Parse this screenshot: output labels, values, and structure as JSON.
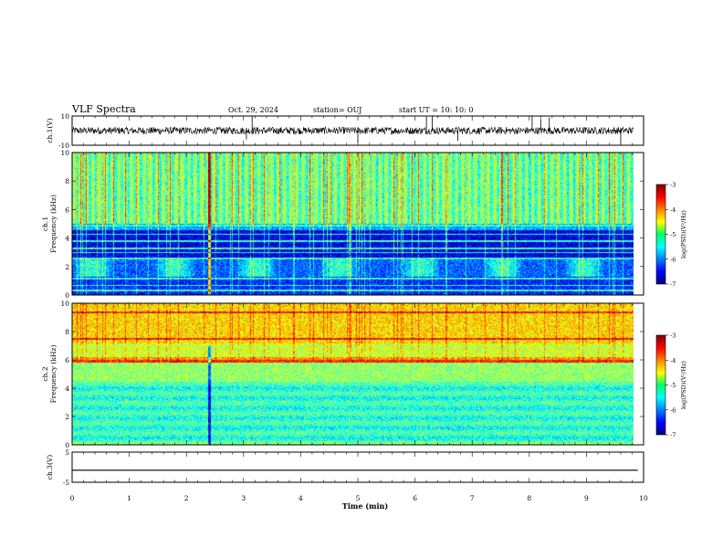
{
  "header": {
    "title": "VLF Spectra",
    "date": "Oct. 29, 2024",
    "station": "station= OUJ",
    "start": "start  UT =   10: 10: 0"
  },
  "chart_data": [
    {
      "name": "ch1-waveform",
      "type": "line",
      "ylabel": "ch.1(V)",
      "ylim": [
        -10,
        10
      ],
      "yticks": [
        "10",
        "-10"
      ],
      "xlim": [
        0,
        10
      ],
      "baseline": 0,
      "trace_color": "#000000"
    },
    {
      "name": "ch1-spectrogram",
      "type": "heatmap",
      "ylabel": "ch.1\nFrequency (kHz)",
      "ylim": [
        0,
        10
      ],
      "yticks": [
        "0",
        "2",
        "4",
        "6",
        "8",
        "10"
      ],
      "xlim": [
        0,
        10
      ],
      "data_end_min": 9.83,
      "colorbar": {
        "label": "log(PSD)(V²/Hz)",
        "range": [
          -7,
          -3
        ],
        "ticks": [
          "-3",
          "-4",
          "-5",
          "-6",
          "-7"
        ]
      }
    },
    {
      "name": "ch2-spectrogram",
      "type": "heatmap",
      "ylabel": "ch.2\nFrequency (kHz)",
      "ylim": [
        0,
        10
      ],
      "yticks": [
        "0",
        "2",
        "4",
        "6",
        "8",
        "10"
      ],
      "xlim": [
        0,
        10
      ],
      "data_end_min": 9.83,
      "colorbar": {
        "label": "log(PSD)(V²/Hz)",
        "range": [
          -7,
          -3
        ],
        "ticks": [
          "-3",
          "-4",
          "-5",
          "-6",
          "-7"
        ]
      }
    },
    {
      "name": "ch3-waveform",
      "type": "line",
      "ylabel": "ch.3(V)",
      "ylim": [
        -5,
        5
      ],
      "yticks": [
        "5",
        "-5"
      ],
      "xlim": [
        0,
        10
      ],
      "value": -1,
      "trace_color": "#000000"
    }
  ],
  "xaxis": {
    "label": "Time (min)",
    "ticks": [
      "0",
      "1",
      "2",
      "3",
      "4",
      "5",
      "6",
      "7",
      "8",
      "9",
      "10"
    ]
  }
}
